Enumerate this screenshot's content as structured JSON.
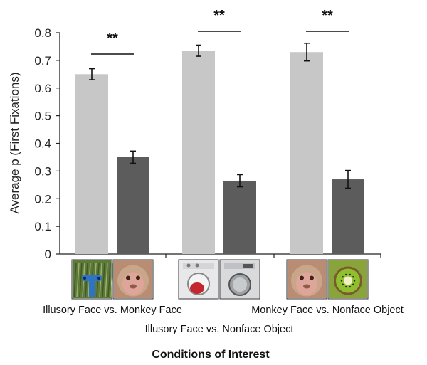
{
  "chart_data": {
    "type": "bar",
    "ylabel": "Average  p (First Fixations)",
    "xlabel": "Conditions of Interest",
    "ylim": [
      0,
      0.8
    ],
    "yticks": [
      "0",
      "0.1",
      "0.2",
      "0.3",
      "0.4",
      "0.5",
      "0.6",
      "0.7",
      "0.8"
    ],
    "grid": false,
    "groups": [
      {
        "label": "Illusory Face vs. Monkey Face",
        "bars": [
          {
            "value": 0.65,
            "error": 0.02,
            "color": "#c7c7c7",
            "stimulus": "illusory-face-icon"
          },
          {
            "value": 0.35,
            "error": 0.022,
            "color": "#5c5c5c",
            "stimulus": "monkey-face-icon"
          }
        ],
        "significance": "**"
      },
      {
        "label": "Illusory Face vs. Nonface Object",
        "bars": [
          {
            "value": 0.735,
            "error": 0.02,
            "color": "#c7c7c7",
            "stimulus": "illusory-face-washer-icon"
          },
          {
            "value": 0.265,
            "error": 0.022,
            "color": "#5c5c5c",
            "stimulus": "washing-machine-icon"
          }
        ],
        "significance": "**"
      },
      {
        "label": "Monkey Face vs. Nonface Object",
        "bars": [
          {
            "value": 0.73,
            "error": 0.032,
            "color": "#c7c7c7",
            "stimulus": "monkey-face-icon"
          },
          {
            "value": 0.27,
            "error": 0.032,
            "color": "#5c5c5c",
            "stimulus": "kiwi-fruit-icon"
          }
        ],
        "significance": "**"
      }
    ]
  }
}
